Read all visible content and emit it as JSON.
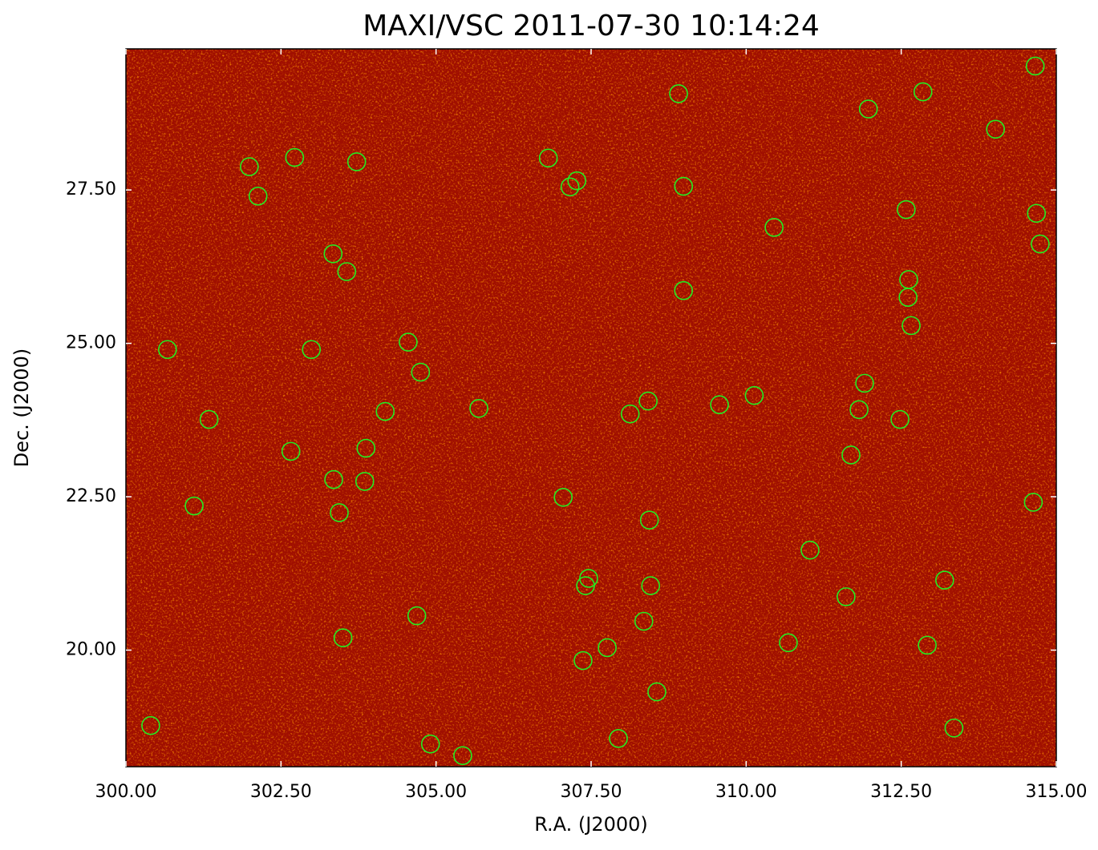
{
  "chart_data": {
    "type": "scatter",
    "title": "MAXI/VSC 2011-07-30 10:14:24",
    "xlabel": "R.A. (J2000)",
    "ylabel": "Dec. (J2000)",
    "xlim": [
      300,
      315
    ],
    "ylim": [
      18.1,
      29.8
    ],
    "xticks": [
      {
        "value": 300,
        "label": "300.00"
      },
      {
        "value": 302.5,
        "label": "302.50"
      },
      {
        "value": 305,
        "label": "305.00"
      },
      {
        "value": 307.5,
        "label": "307.50"
      },
      {
        "value": 310,
        "label": "310.00"
      },
      {
        "value": 312.5,
        "label": "312.50"
      },
      {
        "value": 315,
        "label": "315.00"
      }
    ],
    "yticks": [
      {
        "value": 20,
        "label": "20.00"
      },
      {
        "value": 22.5,
        "label": "22.50"
      },
      {
        "value": 25,
        "label": "25.00"
      },
      {
        "value": 27.5,
        "label": "27.50"
      }
    ],
    "color": "#22ee22",
    "x": [
      314.66,
      308.91,
      312.85,
      311.97,
      314.02,
      301.99,
      302.72,
      303.72,
      306.81,
      307.27,
      307.16,
      302.13,
      308.99,
      312.58,
      314.68,
      314.74,
      310.45,
      303.34,
      303.56,
      312.62,
      312.61,
      308.99,
      312.66,
      300.67,
      302.99,
      304.55,
      304.75,
      311.91,
      310.13,
      308.42,
      309.57,
      311.82,
      305.69,
      304.18,
      308.13,
      301.34,
      312.48,
      303.87,
      302.66,
      311.69,
      303.35,
      303.85,
      307.05,
      314.63,
      301.1,
      303.44,
      308.44,
      311.03,
      307.46,
      307.41,
      313.2,
      308.46,
      311.61,
      304.69,
      308.35,
      303.5,
      310.68,
      312.92,
      307.76,
      307.37,
      308.56,
      300.4,
      313.35,
      307.94,
      304.91,
      305.43
    ],
    "y": [
      29.52,
      29.07,
      29.1,
      28.82,
      28.49,
      27.88,
      28.03,
      27.96,
      28.02,
      27.65,
      27.55,
      27.4,
      27.56,
      27.18,
      27.12,
      26.62,
      26.89,
      26.46,
      26.17,
      26.04,
      25.75,
      25.86,
      25.29,
      24.9,
      24.9,
      25.02,
      24.53,
      24.35,
      24.15,
      24.06,
      24.0,
      23.92,
      23.94,
      23.89,
      23.85,
      23.76,
      23.76,
      23.29,
      23.24,
      23.18,
      22.78,
      22.75,
      22.49,
      22.41,
      22.35,
      22.24,
      22.12,
      21.63,
      21.17,
      21.05,
      21.14,
      21.05,
      20.87,
      20.56,
      20.47,
      20.2,
      20.12,
      20.08,
      20.04,
      19.83,
      19.32,
      18.77,
      18.73,
      18.56,
      18.47,
      18.28
    ]
  }
}
